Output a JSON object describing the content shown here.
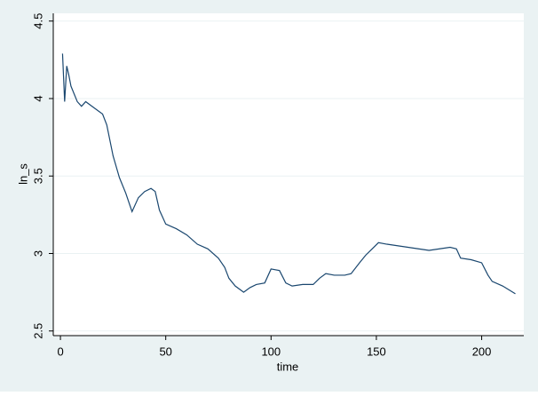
{
  "chart_data": {
    "type": "line",
    "x_label": "time",
    "y_label": "ln_s",
    "x": [
      1,
      2,
      3,
      4,
      5,
      8,
      10,
      12,
      15,
      20,
      22,
      25,
      28,
      31,
      34,
      37,
      40,
      43,
      45,
      47,
      50,
      55,
      60,
      65,
      70,
      75,
      78,
      80,
      83,
      87,
      90,
      93,
      97,
      100,
      104,
      107,
      110,
      115,
      120,
      123,
      126,
      130,
      135,
      138,
      142,
      145,
      148,
      151,
      155,
      160,
      165,
      170,
      175,
      180,
      185,
      188,
      190,
      195,
      200,
      203,
      205,
      210,
      216
    ],
    "series": [
      {
        "name": "ln_s",
        "color": "#1a476f",
        "values": [
          4.29,
          3.98,
          4.21,
          4.15,
          4.08,
          3.98,
          3.95,
          3.98,
          3.95,
          3.9,
          3.83,
          3.63,
          3.49,
          3.39,
          3.27,
          3.36,
          3.4,
          3.42,
          3.4,
          3.28,
          3.19,
          3.16,
          3.12,
          3.06,
          3.03,
          2.97,
          2.91,
          2.84,
          2.79,
          2.75,
          2.78,
          2.8,
          2.81,
          2.9,
          2.89,
          2.81,
          2.79,
          2.8,
          2.8,
          2.84,
          2.87,
          2.86,
          2.86,
          2.87,
          2.94,
          2.99,
          3.03,
          3.07,
          3.06,
          3.05,
          3.04,
          3.03,
          3.02,
          3.03,
          3.04,
          3.03,
          2.97,
          2.96,
          2.94,
          2.86,
          2.82,
          2.79,
          2.74
        ]
      }
    ],
    "xlim": [
      -3.4,
      220
    ],
    "ylim": [
      2.47,
      4.55
    ],
    "xticks": [
      0,
      50,
      100,
      150,
      200
    ],
    "yticks": [
      2.5,
      3,
      3.5,
      4,
      4.5
    ],
    "grid": true
  }
}
